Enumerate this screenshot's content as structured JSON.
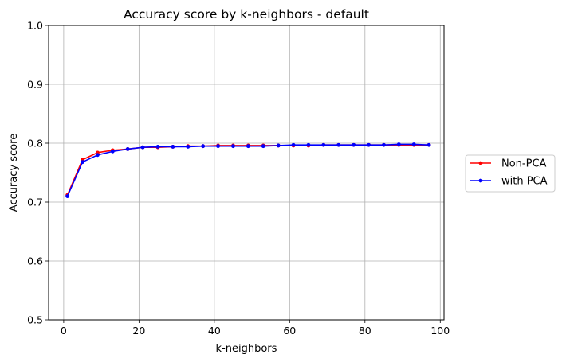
{
  "chart_data": {
    "type": "line",
    "title": "Accuracy score by k-neighbors - default",
    "xlabel": "k-neighbors",
    "ylabel": "Accuracy score",
    "xlim": [
      -4,
      101
    ],
    "ylim": [
      0.5,
      1.0
    ],
    "xticks": [
      0,
      20,
      40,
      60,
      80,
      100
    ],
    "yticks": [
      0.5,
      0.6,
      0.7,
      0.8,
      0.9,
      1.0
    ],
    "xtick_labels": [
      "0",
      "20",
      "40",
      "60",
      "80",
      "100"
    ],
    "ytick_labels": [
      "0.5",
      "0.6",
      "0.7",
      "0.8",
      "0.9",
      "1.0"
    ],
    "grid": true,
    "legend_position": "right, outside plot",
    "x": [
      1,
      5,
      9,
      13,
      17,
      21,
      25,
      29,
      33,
      37,
      41,
      45,
      49,
      53,
      57,
      61,
      65,
      69,
      73,
      77,
      81,
      85,
      89,
      93,
      97
    ],
    "series": [
      {
        "name": "Non-PCA",
        "color": "#ff0000",
        "values": [
          0.712,
          0.772,
          0.784,
          0.788,
          0.79,
          0.793,
          0.793,
          0.794,
          0.795,
          0.795,
          0.796,
          0.796,
          0.796,
          0.796,
          0.796,
          0.796,
          0.796,
          0.797,
          0.797,
          0.797,
          0.797,
          0.797,
          0.797,
          0.797,
          0.797
        ]
      },
      {
        "name": "with PCA",
        "color": "#0000ff",
        "values": [
          0.71,
          0.768,
          0.78,
          0.786,
          0.79,
          0.793,
          0.794,
          0.794,
          0.794,
          0.795,
          0.795,
          0.795,
          0.795,
          0.795,
          0.796,
          0.797,
          0.797,
          0.797,
          0.797,
          0.797,
          0.797,
          0.797,
          0.798,
          0.798,
          0.797
        ]
      }
    ]
  }
}
